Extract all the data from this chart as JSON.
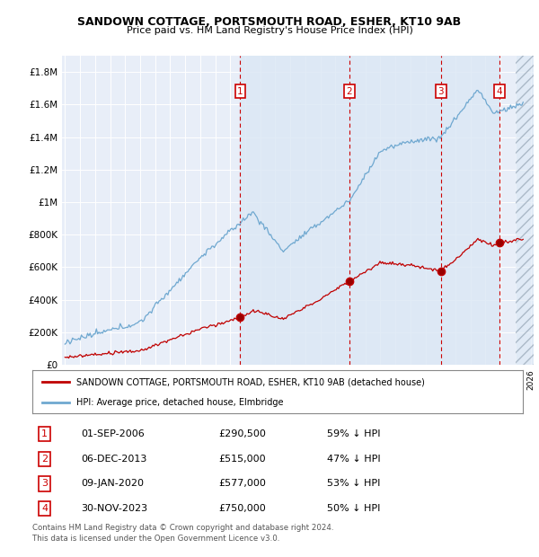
{
  "title": "SANDOWN COTTAGE, PORTSMOUTH ROAD, ESHER, KT10 9AB",
  "subtitle": "Price paid vs. HM Land Registry's House Price Index (HPI)",
  "background_color": "#ffffff",
  "plot_bg_color": "#e8eef8",
  "grid_color": "#cccccc",
  "hpi_color": "#6fa8d0",
  "property_color": "#c00000",
  "sale_points": [
    {
      "date_num": 2006.67,
      "price": 290500,
      "label": "1"
    },
    {
      "date_num": 2013.92,
      "price": 515000,
      "label": "2"
    },
    {
      "date_num": 2020.03,
      "price": 577000,
      "label": "3"
    },
    {
      "date_num": 2023.92,
      "price": 750000,
      "label": "4"
    }
  ],
  "vline_dates": [
    2006.67,
    2013.92,
    2020.03,
    2023.92
  ],
  "ylim": [
    0,
    1900000
  ],
  "xlim": [
    1994.8,
    2026.2
  ],
  "yticks": [
    0,
    200000,
    400000,
    600000,
    800000,
    1000000,
    1200000,
    1400000,
    1600000,
    1800000
  ],
  "ytick_labels": [
    "£0",
    "£200K",
    "£400K",
    "£600K",
    "£800K",
    "£1M",
    "£1.2M",
    "£1.4M",
    "£1.6M",
    "£1.8M"
  ],
  "legend_property_label": "SANDOWN COTTAGE, PORTSMOUTH ROAD, ESHER, KT10 9AB (detached house)",
  "legend_hpi_label": "HPI: Average price, detached house, Elmbridge",
  "table_data": [
    {
      "num": "1",
      "date": "01-SEP-2006",
      "price": "£290,500",
      "pct": "59% ↓ HPI"
    },
    {
      "num": "2",
      "date": "06-DEC-2013",
      "price": "£515,000",
      "pct": "47% ↓ HPI"
    },
    {
      "num": "3",
      "date": "09-JAN-2020",
      "price": "£577,000",
      "pct": "53% ↓ HPI"
    },
    {
      "num": "4",
      "date": "30-NOV-2023",
      "price": "£750,000",
      "pct": "50% ↓ HPI"
    }
  ],
  "footnote": "Contains HM Land Registry data © Crown copyright and database right 2024.\nThis data is licensed under the Open Government Licence v3.0."
}
